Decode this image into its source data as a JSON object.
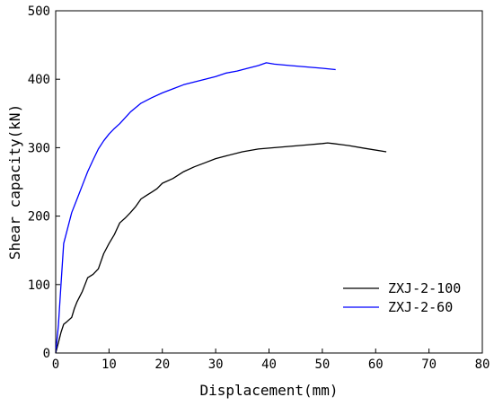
{
  "chart_data": {
    "type": "line",
    "xlabel": "Displacement(mm)",
    "ylabel": "Shear capacity(kN)",
    "xlim": [
      0,
      80
    ],
    "ylim": [
      0,
      500
    ],
    "xticks": [
      0,
      10,
      20,
      30,
      40,
      50,
      60,
      70,
      80
    ],
    "yticks": [
      0,
      100,
      200,
      300,
      400,
      500
    ],
    "grid": false,
    "legend_position": "lower-right",
    "series": [
      {
        "name": "ZXJ-2-100",
        "color": "#000000",
        "x": [
          0,
          0.5,
          1.0,
          1.5,
          2.0,
          3.0,
          3.5,
          4.0,
          5.0,
          6.0,
          7.0,
          8.0,
          9.0,
          10.0,
          11.0,
          12.0,
          13.0,
          14.0,
          15.0,
          16.0,
          17.0,
          18.0,
          19.0,
          20.0,
          22.0,
          24.0,
          26.0,
          28.0,
          30.0,
          32.0,
          35.0,
          38.0,
          41.0,
          44.0,
          47.0,
          50.0,
          51.0,
          52.0,
          55.0,
          58.0,
          62.0
        ],
        "y": [
          0,
          15,
          30,
          42,
          45,
          52,
          65,
          75,
          90,
          110,
          115,
          123,
          145,
          160,
          173,
          190,
          197,
          205,
          214,
          225,
          230,
          235,
          240,
          248,
          255,
          265,
          272,
          278,
          284,
          288,
          294,
          298,
          300,
          302,
          304,
          306,
          307,
          306,
          303,
          299,
          294
        ]
      },
      {
        "name": "ZXJ-2-60",
        "color": "#0000ff",
        "x": [
          0,
          0.5,
          1.0,
          1.5,
          2.0,
          3.0,
          4.0,
          5.0,
          6.0,
          7.0,
          8.0,
          9.0,
          10.0,
          11.0,
          12.0,
          14.0,
          16.0,
          18.0,
          20.0,
          22.0,
          24.0,
          26.0,
          28.0,
          30.0,
          32.0,
          34.0,
          36.0,
          38.0,
          39.5,
          41.0,
          44.0,
          47.0,
          50.0,
          52.5
        ],
        "y": [
          0,
          40,
          100,
          160,
          175,
          205,
          225,
          245,
          265,
          282,
          298,
          310,
          320,
          328,
          335,
          352,
          365,
          373,
          380,
          386,
          392,
          396,
          400,
          404,
          409,
          412,
          416,
          420,
          424,
          422,
          420,
          418,
          416,
          414
        ]
      }
    ]
  }
}
